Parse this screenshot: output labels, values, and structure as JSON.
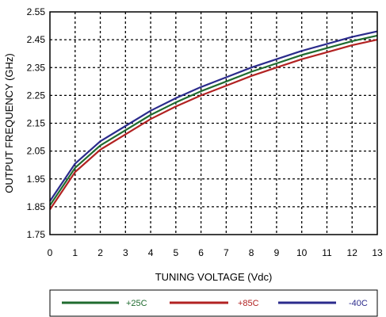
{
  "chart_data": {
    "type": "line",
    "title": "",
    "xlabel": "TUNING VOLTAGE (Vdc)",
    "ylabel": "OUTPUT FREQUENCY (GHz)",
    "xlim": [
      0,
      13
    ],
    "ylim": [
      1.75,
      2.55
    ],
    "xticks": [
      "0",
      "1",
      "2",
      "3",
      "4",
      "5",
      "6",
      "7",
      "8",
      "9",
      "10",
      "11",
      "12",
      "13"
    ],
    "yticks": [
      "1.75",
      "1.85",
      "1.95",
      "2.05",
      "2.15",
      "2.25",
      "2.35",
      "2.45",
      "2.55"
    ],
    "grid": true,
    "legend_position": "bottom",
    "x": [
      0,
      1,
      2,
      3,
      4,
      5,
      6,
      7,
      8,
      9,
      10,
      11,
      12,
      13
    ],
    "series": [
      {
        "name": "+25C",
        "color": "#1f6b2f",
        "values": [
          1.855,
          1.99,
          2.07,
          2.125,
          2.18,
          2.225,
          2.265,
          2.3,
          2.335,
          2.365,
          2.395,
          2.42,
          2.445,
          2.465
        ]
      },
      {
        "name": "+85C",
        "color": "#b22222",
        "values": [
          1.84,
          1.975,
          2.055,
          2.11,
          2.165,
          2.21,
          2.25,
          2.285,
          2.32,
          2.35,
          2.38,
          2.405,
          2.43,
          2.45
        ]
      },
      {
        "name": "-40C",
        "color": "#2b2b8c",
        "values": [
          1.87,
          2.005,
          2.085,
          2.14,
          2.195,
          2.24,
          2.28,
          2.315,
          2.35,
          2.38,
          2.41,
          2.435,
          2.46,
          2.48
        ]
      }
    ]
  }
}
